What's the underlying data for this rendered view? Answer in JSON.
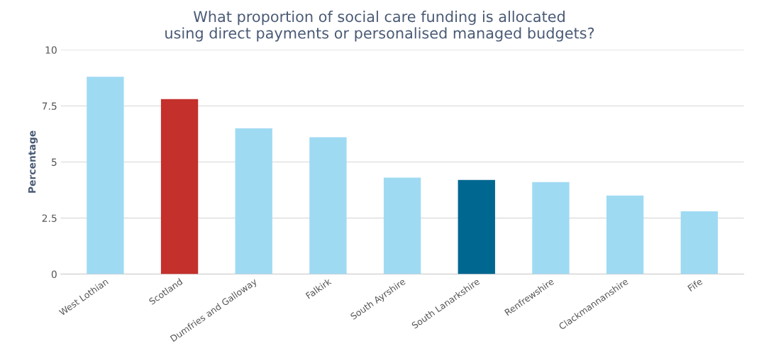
{
  "chart_data": {
    "type": "bar",
    "title": "What proportion of social care funding is allocated\nusing direct payments or personalised managed budgets?",
    "ylabel": "Percentage",
    "categories": [
      "West Lothian",
      "Scotland",
      "Dumfries and Galloway",
      "Falkirk",
      "South Ayrshire",
      "South Lanarkshire",
      "Renfrewshire",
      "Clackmannanshire",
      "Fife"
    ],
    "values": [
      8.8,
      7.8,
      6.5,
      6.1,
      4.3,
      4.2,
      4.1,
      3.5,
      2.8
    ],
    "colors": [
      "#9fdaf3",
      "#c4302b",
      "#9fdaf3",
      "#9fdaf3",
      "#9fdaf3",
      "#006791",
      "#9fdaf3",
      "#9fdaf3",
      "#9fdaf3"
    ],
    "ylim": [
      0,
      10
    ],
    "yticks": [
      0,
      2.5,
      5,
      7.5,
      10
    ],
    "grid": "y",
    "legend": false
  }
}
